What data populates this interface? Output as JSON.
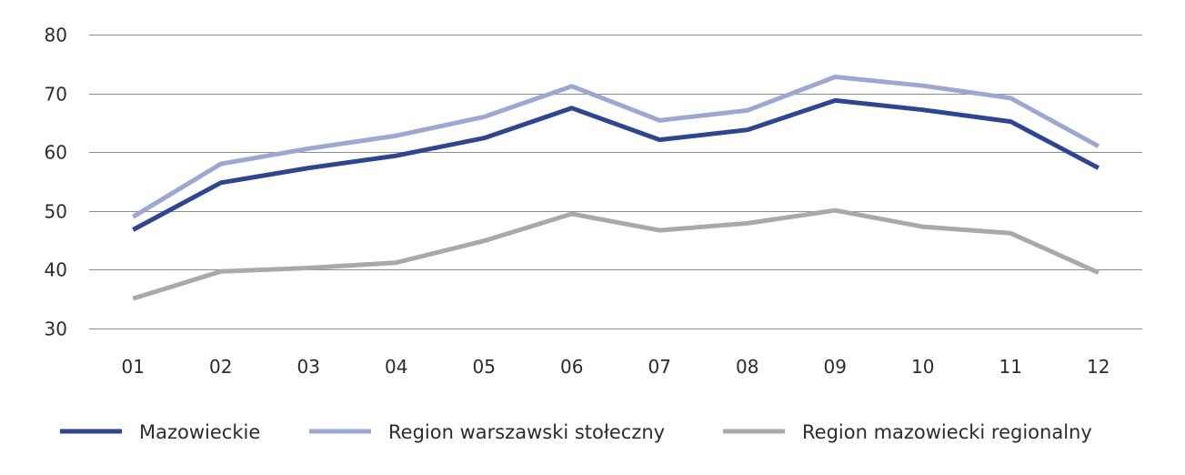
{
  "chart_data": {
    "type": "line",
    "categories": [
      "01",
      "02",
      "03",
      "04",
      "05",
      "06",
      "07",
      "08",
      "09",
      "10",
      "11",
      "12"
    ],
    "ylim": [
      30,
      80
    ],
    "yticks": [
      30,
      40,
      50,
      60,
      70,
      80
    ],
    "grid": "horizontal",
    "legend_position": "bottom",
    "series": [
      {
        "name": "Mazowieckie",
        "color": "#2e4590",
        "values": [
          46.8,
          54.8,
          57.3,
          59.4,
          62.4,
          67.5,
          62.1,
          63.8,
          68.8,
          67.2,
          65.2,
          57.3
        ]
      },
      {
        "name": "Region warszawski stołeczny",
        "color": "#9aa8d2",
        "values": [
          49.0,
          58.0,
          60.6,
          62.8,
          66.0,
          71.2,
          65.4,
          67.1,
          72.8,
          71.3,
          69.2,
          61.0
        ]
      },
      {
        "name": "Region mazowiecki regionalny",
        "color": "#a9a9a9",
        "values": [
          35.1,
          39.7,
          40.3,
          41.2,
          44.9,
          49.5,
          46.7,
          47.9,
          50.1,
          47.3,
          46.2,
          39.5
        ]
      }
    ]
  }
}
